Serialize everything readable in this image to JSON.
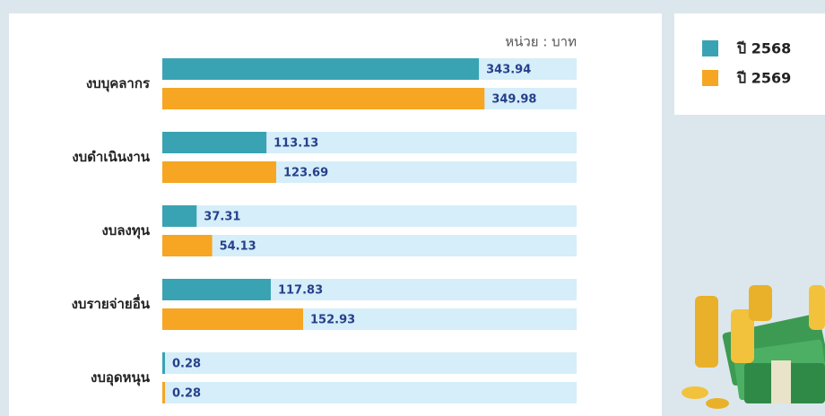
{
  "chart_data": {
    "type": "hbar",
    "unit_label": "หน่วย : บาท",
    "categories": [
      "งบบุคลากร",
      "งบดำเนินงาน",
      "งบลงทุน",
      "งบรายจ่ายอื่น",
      "งบอุดหนุน"
    ],
    "series": [
      {
        "name": "ปี 2568",
        "color": "#3aa3b3",
        "values": [
          343.94,
          113.13,
          37.31,
          117.83,
          0.28
        ]
      },
      {
        "name": "ปี 2569",
        "color": "#f6a623",
        "values": [
          349.98,
          123.69,
          54.13,
          152.93,
          0.28
        ]
      }
    ],
    "xlim": [
      0,
      450
    ],
    "track_color": "#d5eef9",
    "value_label_color": "#27408b"
  }
}
